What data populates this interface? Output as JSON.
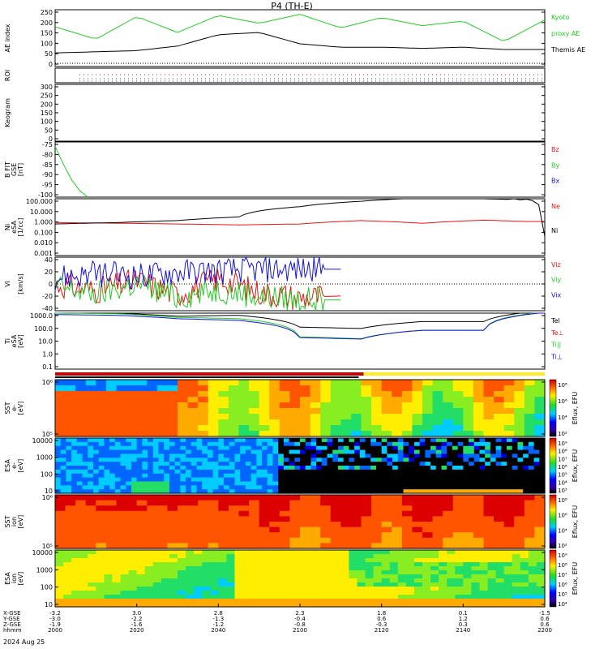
{
  "title": "P4 (TH-E)",
  "date_label": "2024 Aug 25",
  "xaxis": {
    "rows": [
      {
        "label": "X-GSE",
        "values": [
          "-3.2",
          "3.0",
          "2.8",
          "2.3",
          "1.8",
          "0.1",
          "-1.5"
        ]
      },
      {
        "label": "Y-GSE",
        "values": [
          "-3.0",
          "-2.2",
          "-1.3",
          "-0.4",
          "0.6",
          "1.2",
          "0.6"
        ]
      },
      {
        "label": "Z-GSE",
        "values": [
          "-1.9",
          "-1.6",
          "-1.2",
          "-0.8",
          "-0.3",
          "0.3",
          "0.6"
        ]
      },
      {
        "label": "hhmm",
        "values": [
          "2000",
          "2020",
          "2040",
          "2100",
          "2120",
          "2140",
          "2200"
        ]
      }
    ]
  },
  "colors": {
    "green": "#22cc22",
    "red": "#ee1111",
    "blue": "#1111dd",
    "black": "#000000",
    "yellow": "#ffee22",
    "orange": "#ff9900"
  },
  "panels": [
    {
      "id": "ae",
      "ylabel": [
        "AE index"
      ],
      "ticks": [
        "250",
        "200",
        "150",
        "100",
        "50",
        "0"
      ],
      "legend": [
        {
          "text": "Kyoto",
          "color": "#22cc22"
        },
        {
          "text": "proxy AE",
          "color": "#22cc22"
        },
        {
          "text": "Themis AE",
          "color": "#000000"
        }
      ]
    },
    {
      "id": "roi",
      "ylabel": [
        "ROI"
      ],
      "ticks": [],
      "legend": []
    },
    {
      "id": "keogram",
      "ylabel": [
        "Keogram"
      ],
      "ticks": [
        "300",
        "250",
        "200",
        "150",
        "100",
        "50",
        "0"
      ],
      "legend": []
    },
    {
      "id": "bfit",
      "ylabel": [
        "B FIT",
        "GSE",
        "[nT]"
      ],
      "ticks": [
        "-75",
        "-80",
        "-85",
        "-90",
        "-95",
        "-100"
      ],
      "legend": [
        {
          "text": "Bz",
          "color": "#ee1111"
        },
        {
          "text": "By",
          "color": "#22cc22"
        },
        {
          "text": "Bx",
          "color": "#1111dd"
        }
      ]
    },
    {
      "id": "ni",
      "ylabel": [
        "Ni",
        "eSA",
        "[1/cc]"
      ],
      "ticks": [
        "100.000",
        "10.000",
        "1.000",
        "0.100",
        "0.010",
        "0.001"
      ],
      "legend": [
        {
          "text": "Ne",
          "color": "#ee1111"
        },
        {
          "text": "Ni",
          "color": "#000000"
        }
      ]
    },
    {
      "id": "vi",
      "ylabel": [
        "Vi",
        "",
        "[km/s]"
      ],
      "ticks": [
        "40",
        "20",
        "0",
        "-20",
        "-40"
      ],
      "legend": [
        {
          "text": "Viz",
          "color": "#ee1111"
        },
        {
          "text": "Viy",
          "color": "#22cc22"
        },
        {
          "text": "Vix",
          "color": "#1111dd"
        }
      ]
    },
    {
      "id": "ti",
      "ylabel": [
        "Ti",
        "eSA",
        "[eV]"
      ],
      "ticks": [
        "1000.0",
        "100.0",
        "10.0",
        "1.0",
        "0.1"
      ],
      "legend": [
        {
          "text": "Tel",
          "color": "#000000"
        },
        {
          "text": "Te⊥",
          "color": "#ee1111"
        },
        {
          "text": "Ti||",
          "color": "#22cc22"
        },
        {
          "text": "Ti⊥",
          "color": "#1111dd"
        }
      ]
    },
    {
      "id": "sst_e",
      "ylabel": [
        "SST",
        "e-",
        "[eV]"
      ],
      "ticks": [
        "10⁶",
        "10⁵"
      ],
      "legend": []
    },
    {
      "id": "esa_e",
      "ylabel": [
        "ESA",
        "e-",
        "[eV]"
      ],
      "ticks": [
        "10000",
        "1000",
        "100",
        "10"
      ],
      "legend": []
    },
    {
      "id": "sst_i",
      "ylabel": [
        "SST",
        "ion",
        "[eV]"
      ],
      "ticks": [
        "10⁶",
        "10⁵"
      ],
      "legend": []
    },
    {
      "id": "esa_i",
      "ylabel": [
        "ESA",
        "ion",
        "[eV]"
      ],
      "ticks": [
        "10000",
        "1000",
        "100",
        "10"
      ],
      "legend": []
    }
  ],
  "colorbars": [
    {
      "title": "Eflux, EFU",
      "ticks": [
        "10⁸",
        "10⁶",
        "10⁴",
        "10²"
      ]
    },
    {
      "title": "Eflux, EFU",
      "ticks": [
        "10⁹",
        "10⁸",
        "10⁷",
        "10⁶",
        "10⁵",
        "10⁴",
        "10³"
      ]
    },
    {
      "title": "Eflux, EFU",
      "ticks": [
        "10⁸",
        "10⁶",
        "10⁴",
        "10²"
      ]
    },
    {
      "title": "Eflux, EFU",
      "ticks": [
        "10⁹",
        "10⁸",
        "10⁷",
        "10⁶",
        "10⁵",
        "10⁴"
      ]
    }
  ],
  "chart_data": [
    {
      "type": "line",
      "panel": "ae",
      "x": [
        "2000",
        "2010",
        "2020",
        "2030",
        "2040",
        "2050",
        "2100",
        "2110",
        "2120",
        "2130",
        "2140",
        "2150",
        "2200"
      ],
      "series": [
        {
          "name": "Kyoto proxy AE",
          "values": [
            175,
            120,
            220,
            150,
            225,
            190,
            230,
            170,
            215,
            180,
            200,
            110,
            205
          ]
        },
        {
          "name": "Themis AE",
          "values": [
            60,
            65,
            70,
            90,
            140,
            150,
            100,
            85,
            85,
            80,
            85,
            75,
            75
          ]
        }
      ],
      "ylim": [
        0,
        250
      ]
    },
    {
      "type": "line",
      "panel": "bfit",
      "x": [
        "2000",
        "2002",
        "2004",
        "2006",
        "2008"
      ],
      "series": [
        {
          "name": "By",
          "values": [
            -77,
            -85,
            -92,
            -97,
            -100
          ]
        }
      ],
      "ylim": [
        -100,
        -75
      ]
    },
    {
      "type": "line",
      "panel": "ni",
      "x": [
        "2000",
        "2015",
        "2030",
        "2045",
        "2100",
        "2115",
        "2130",
        "2145",
        "2155",
        "2200"
      ],
      "series": [
        {
          "name": "Ne",
          "values": [
            0.8,
            0.7,
            0.6,
            0.5,
            0.6,
            1.2,
            0.7,
            1.3,
            1.0,
            1.0
          ]
        },
        {
          "name": "Ni",
          "values": [
            0.6,
            0.8,
            1.2,
            2.5,
            20,
            60,
            120,
            100,
            80,
            0.05
          ]
        }
      ]
    },
    {
      "type": "line",
      "panel": "vi",
      "x": [
        "2000",
        "2010",
        "2020",
        "2030",
        "2040",
        "2050",
        "2100",
        "2110"
      ],
      "series": [
        {
          "name": "Viz",
          "values": [
            0,
            -10,
            5,
            -15,
            8,
            -12,
            -20,
            -18
          ]
        },
        {
          "name": "Viy",
          "values": [
            -5,
            -15,
            0,
            -20,
            -8,
            -18,
            -24,
            -24
          ]
        },
        {
          "name": "Vix",
          "values": [
            10,
            15,
            12,
            18,
            20,
            22,
            22,
            22
          ]
        }
      ],
      "ylim": [
        -40,
        40
      ]
    },
    {
      "type": "line",
      "panel": "ti",
      "x": [
        "2000",
        "2015",
        "2030",
        "2045",
        "2100",
        "2115",
        "2130",
        "2145",
        "2200"
      ],
      "series": [
        {
          "name": "Tel",
          "values": [
            1200,
            1000,
            600,
            700,
            100,
            80,
            250,
            250,
            1500
          ]
        },
        {
          "name": "Ti||",
          "values": [
            1000,
            900,
            500,
            400,
            20,
            15,
            60,
            60,
            1200
          ]
        },
        {
          "name": "Ti⊥",
          "values": [
            800,
            700,
            400,
            300,
            18,
            14,
            60,
            60,
            1100
          ]
        }
      ]
    }
  ]
}
